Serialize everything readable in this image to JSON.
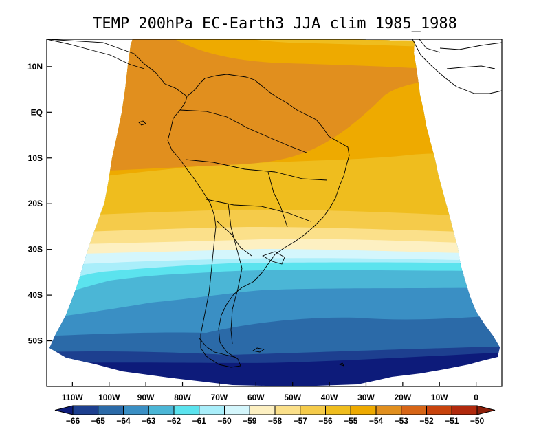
{
  "title": "TEMP 200hPa EC-Earth3 JJA clim 1985_1988",
  "map": {
    "lat_labels": [
      "10N",
      "EQ",
      "10S",
      "20S",
      "30S",
      "40S",
      "50S"
    ],
    "lat_values": [
      10,
      0,
      -10,
      -20,
      -30,
      -40,
      -50
    ],
    "lon_labels": [
      "110W",
      "100W",
      "90W",
      "80W",
      "70W",
      "60W",
      "50W",
      "40W",
      "30W",
      "20W",
      "10W",
      "0"
    ],
    "lon_values": [
      -110,
      -100,
      -90,
      -80,
      -70,
      -60,
      -50,
      -40,
      -30,
      -20,
      -10,
      0
    ],
    "lon_range": [
      -117,
      7
    ],
    "lat_range": [
      -60,
      16
    ]
  },
  "colorbar": {
    "labels": [
      "-66",
      "-65",
      "-64",
      "-63",
      "-62",
      "-61",
      "-60",
      "-59",
      "-58",
      "-57",
      "-56",
      "-55",
      "-54",
      "-53",
      "-52",
      "-51",
      "-50"
    ],
    "colors": [
      "#0d1b7a",
      "#1d3f8f",
      "#2b6aa8",
      "#3a8fc4",
      "#4bb6d6",
      "#5be3ee",
      "#a9eefa",
      "#d4f6fc",
      "#fdf0c2",
      "#fbe08a",
      "#f5cb4a",
      "#efbd1e",
      "#eeaa00",
      "#e18f1e",
      "#d76516",
      "#c8430c",
      "#b1290c",
      "#8c1f0a"
    ]
  }
}
